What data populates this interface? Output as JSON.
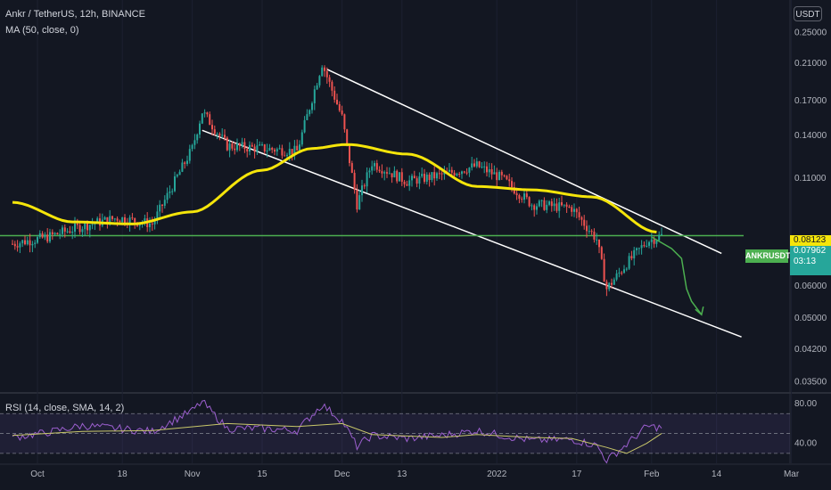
{
  "header": {
    "title": "Ankr / TetherUS, 12h, BINANCE",
    "indicator": "MA (50, close, 0)",
    "currency": "USDT"
  },
  "rsi_legend": "RSI (14, close, SMA, 14, 2)",
  "badges": {
    "symbol": "ANKRUSDT",
    "ma_value": "0.08123",
    "price": "0.07962",
    "countdown": "03:13"
  },
  "colors": {
    "background": "#131722",
    "up": "#26a69a",
    "down": "#ef5350",
    "ma": "#f5e50a",
    "horizontal_line": "#4caf50",
    "channel": "#ffffff",
    "projection": "#4caf50",
    "rsi": "#9c5fcf",
    "rsi_ma": "#c9c86a",
    "ma_badge": "#f5e50a",
    "price_badge": "#26a69a"
  },
  "chart_data": [
    {
      "type": "candlestick",
      "title": "Ankr / TetherUS, 12h, BINANCE",
      "scale": "log",
      "x_ticks": [
        "Oct",
        "18",
        "Nov",
        "15",
        "Dec",
        "13",
        "2022",
        "17",
        "Feb",
        "14",
        "Mar"
      ],
      "y_ticks": [
        0.25,
        0.21,
        0.17,
        0.14,
        0.11,
        0.0812,
        0.0796,
        0.06,
        0.05,
        0.042,
        0.035
      ],
      "y_tick_labels": [
        "0.25000",
        "0.21000",
        "0.17000",
        "0.14000",
        "0.11000",
        "0.08123",
        "0.07962",
        "0.06000",
        "0.05000",
        "0.04200",
        "0.03500"
      ],
      "ylim": [
        0.033,
        0.3
      ],
      "price_path": [
        {
          "x": "Sep 26",
          "y": 0.076
        },
        {
          "x": "Oct 3",
          "y": 0.079
        },
        {
          "x": "Oct 10",
          "y": 0.084
        },
        {
          "x": "Oct 17",
          "y": 0.088
        },
        {
          "x": "Oct 24",
          "y": 0.085
        },
        {
          "x": "Nov 1",
          "y": 0.13
        },
        {
          "x": "Nov 3",
          "y": 0.16
        },
        {
          "x": "Nov 8",
          "y": 0.132
        },
        {
          "x": "Nov 15",
          "y": 0.13
        },
        {
          "x": "Nov 22",
          "y": 0.128
        },
        {
          "x": "Nov 27",
          "y": 0.21
        },
        {
          "x": "Dec 1",
          "y": 0.155
        },
        {
          "x": "Dec 4",
          "y": 0.095
        },
        {
          "x": "Dec 7",
          "y": 0.12
        },
        {
          "x": "Dec 14",
          "y": 0.108
        },
        {
          "x": "Dec 21",
          "y": 0.112
        },
        {
          "x": "Dec 28",
          "y": 0.118
        },
        {
          "x": "Jan 2",
          "y": 0.11
        },
        {
          "x": "Jan 8",
          "y": 0.095
        },
        {
          "x": "Jan 16",
          "y": 0.093
        },
        {
          "x": "Jan 21",
          "y": 0.078
        },
        {
          "x": "Jan 23",
          "y": 0.059
        },
        {
          "x": "Jan 27",
          "y": 0.068
        },
        {
          "x": "Jan 31",
          "y": 0.077
        },
        {
          "x": "Feb 3",
          "y": 0.0796
        }
      ],
      "series": [
        {
          "name": "MA (50, close, 0)",
          "values": [
            {
              "x": "Sep 26",
              "y": 0.096
            },
            {
              "x": "Oct 8",
              "y": 0.086
            },
            {
              "x": "Oct 20",
              "y": 0.085
            },
            {
              "x": "Nov 1",
              "y": 0.091
            },
            {
              "x": "Nov 15",
              "y": 0.115
            },
            {
              "x": "Nov 25",
              "y": 0.13
            },
            {
              "x": "Dec 2",
              "y": 0.133
            },
            {
              "x": "Dec 14",
              "y": 0.126
            },
            {
              "x": "Dec 28",
              "y": 0.105
            },
            {
              "x": "Jan 8",
              "y": 0.103
            },
            {
              "x": "Jan 20",
              "y": 0.099
            },
            {
              "x": "Feb 2",
              "y": 0.0812
            }
          ]
        }
      ],
      "horizontal_line": 0.0796,
      "channel_upper": [
        {
          "x": "Nov 28",
          "y": 0.203
        },
        {
          "x": "Feb 15",
          "y": 0.072
        }
      ],
      "channel_lower": [
        {
          "x": "Nov 3",
          "y": 0.144
        },
        {
          "x": "Feb 19",
          "y": 0.045
        }
      ],
      "projection": [
        {
          "x": "Feb 1",
          "y": 0.079
        },
        {
          "x": "Feb 5",
          "y": 0.074
        },
        {
          "x": "Feb 7",
          "y": 0.07
        },
        {
          "x": "Feb 8",
          "y": 0.059
        },
        {
          "x": "Feb 9",
          "y": 0.055
        },
        {
          "x": "Feb 11",
          "y": 0.051
        }
      ]
    },
    {
      "type": "line",
      "title": "RSI (14, close, SMA, 14, 2)",
      "y_ticks": [
        80,
        40
      ],
      "y_tick_labels": [
        "80.00",
        "40.00"
      ],
      "ylim": [
        20,
        90
      ],
      "series": [
        {
          "name": "RSI",
          "values": [
            {
              "x": "Sep 26",
              "y": 46
            },
            {
              "x": "Oct 3",
              "y": 51
            },
            {
              "x": "Oct 10",
              "y": 58
            },
            {
              "x": "Oct 17",
              "y": 55
            },
            {
              "x": "Oct 24",
              "y": 52
            },
            {
              "x": "Nov 1",
              "y": 73
            },
            {
              "x": "Nov 3",
              "y": 82
            },
            {
              "x": "Nov 8",
              "y": 55
            },
            {
              "x": "Nov 15",
              "y": 55
            },
            {
              "x": "Nov 22",
              "y": 53
            },
            {
              "x": "Nov 27",
              "y": 79
            },
            {
              "x": "Dec 1",
              "y": 63
            },
            {
              "x": "Dec 4",
              "y": 37
            },
            {
              "x": "Dec 7",
              "y": 48
            },
            {
              "x": "Dec 14",
              "y": 45
            },
            {
              "x": "Dec 21",
              "y": 48
            },
            {
              "x": "Dec 28",
              "y": 53
            },
            {
              "x": "Jan 2",
              "y": 48
            },
            {
              "x": "Jan 8",
              "y": 43
            },
            {
              "x": "Jan 16",
              "y": 44
            },
            {
              "x": "Jan 21",
              "y": 38
            },
            {
              "x": "Jan 23",
              "y": 23
            },
            {
              "x": "Jan 27",
              "y": 39
            },
            {
              "x": "Jan 31",
              "y": 57
            },
            {
              "x": "Feb 3",
              "y": 56
            }
          ]
        },
        {
          "name": "SMA",
          "values": [
            {
              "x": "Sep 26",
              "y": 48
            },
            {
              "x": "Oct 10",
              "y": 52
            },
            {
              "x": "Oct 24",
              "y": 53
            },
            {
              "x": "Nov 8",
              "y": 60
            },
            {
              "x": "Nov 22",
              "y": 57
            },
            {
              "x": "Dec 1",
              "y": 60
            },
            {
              "x": "Dec 7",
              "y": 49
            },
            {
              "x": "Dec 21",
              "y": 46
            },
            {
              "x": "Dec 28",
              "y": 49
            },
            {
              "x": "Jan 8",
              "y": 46
            },
            {
              "x": "Jan 16",
              "y": 45
            },
            {
              "x": "Jan 23",
              "y": 36
            },
            {
              "x": "Jan 27",
              "y": 30
            },
            {
              "x": "Jan 31",
              "y": 40
            },
            {
              "x": "Feb 3",
              "y": 50
            }
          ]
        }
      ],
      "bands": [
        70,
        30
      ]
    }
  ]
}
